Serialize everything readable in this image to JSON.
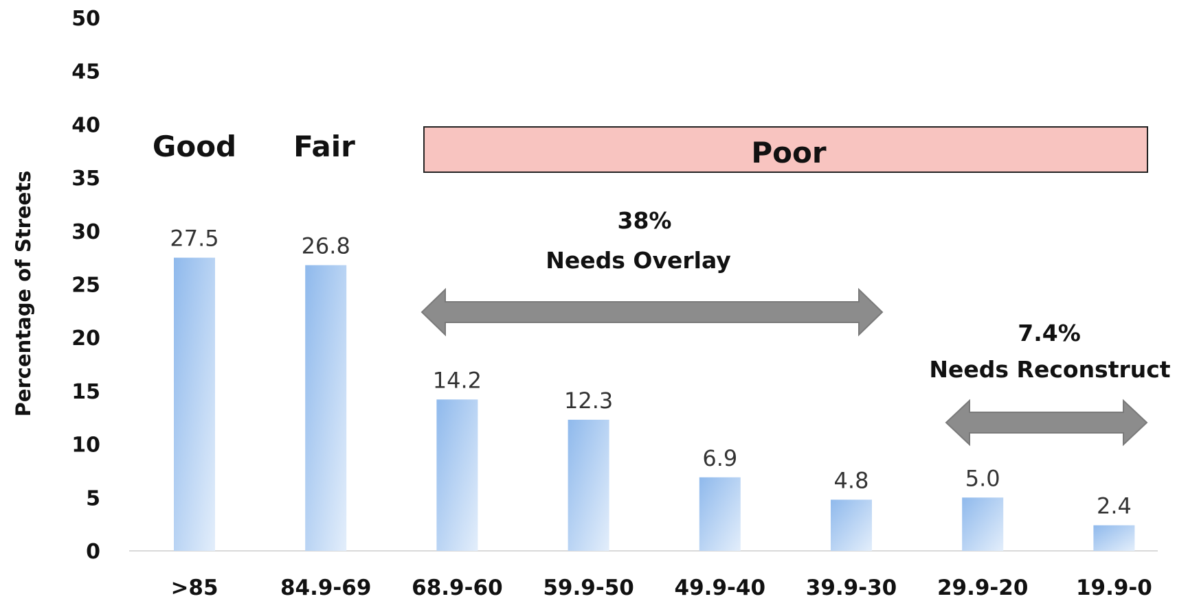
{
  "chart_data": {
    "type": "bar",
    "ylabel": "Percentage of Streets",
    "xlabel": "",
    "ylim": [
      0,
      50
    ],
    "yticks": [
      0,
      5,
      10,
      15,
      20,
      25,
      30,
      35,
      40,
      45,
      50
    ],
    "grid": false,
    "categories": [
      ">85",
      "84.9-69",
      "68.9-60",
      "59.9-50",
      "49.9-40",
      "39.9-30",
      "29.9-20",
      "19.9-0"
    ],
    "values": [
      27.5,
      26.8,
      14.2,
      12.3,
      6.9,
      4.8,
      5.0,
      2.4
    ],
    "data_labels": [
      "27.5",
      "26.8",
      "14.2",
      "12.3",
      "6.9",
      "4.8",
      "5.0",
      "2.4"
    ],
    "bar_color": "#9fc3ef",
    "condition_labels": {
      "good": "Good",
      "fair": "Fair",
      "poor": "Poor",
      "poor_band_color": "#f8c4c0"
    },
    "annotations": {
      "overlay": {
        "percent": "38%",
        "text": "Needs Overlay",
        "span": [
          "68.9-60",
          "39.9-30"
        ]
      },
      "reconstruct": {
        "percent": "7.4%",
        "text": "Needs Reconstruct",
        "span": [
          "29.9-20",
          "19.9-0"
        ]
      },
      "arrow_color": "#8c8c8c"
    }
  }
}
